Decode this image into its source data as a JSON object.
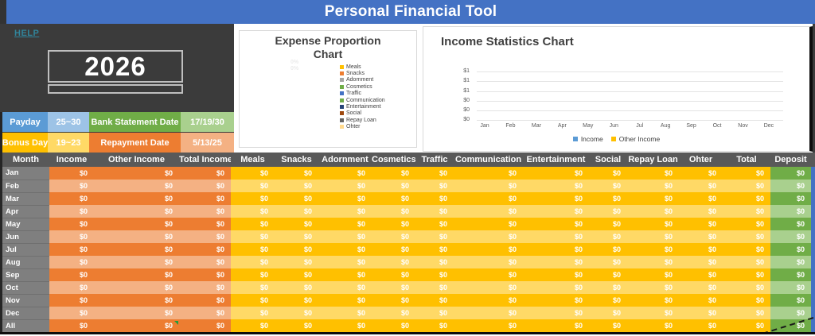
{
  "app": {
    "title": "Personal Financial Tool"
  },
  "left_panel": {
    "help": "HELP",
    "year": "2026",
    "info": [
      {
        "label": "Payday",
        "value": "25~30"
      },
      {
        "label": "Bank Statement Date",
        "value": "17/19/30"
      },
      {
        "label": "Bonus Day",
        "value": "19~23"
      },
      {
        "label": "Repayment Date",
        "value": "5/13/25"
      }
    ]
  },
  "expense_chart": {
    "title_line1": "Expense Proportion",
    "title_line2": "Chart",
    "zero_labels": [
      "0%",
      "0%"
    ],
    "legend": [
      {
        "name": "Meals",
        "color": "#FFC000"
      },
      {
        "name": "Snacks",
        "color": "#ED7D31"
      },
      {
        "name": "Adornment",
        "color": "#A5A5A5"
      },
      {
        "name": "Cosmetics",
        "color": "#70AD47"
      },
      {
        "name": "Traffic",
        "color": "#4472C4"
      },
      {
        "name": "Communication",
        "color": "#70AD47"
      },
      {
        "name": "Entertainment",
        "color": "#264478"
      },
      {
        "name": "Social",
        "color": "#9E480E"
      },
      {
        "name": "Repay Loan",
        "color": "#636363"
      },
      {
        "name": "Ohter",
        "color": "#FFD98C"
      }
    ]
  },
  "income_chart": {
    "title": "Income Statistics Chart",
    "y_ticks": [
      "$1",
      "$1",
      "$1",
      "$0",
      "$0",
      "$0"
    ],
    "x_ticks": [
      "Jan",
      "Feb",
      "Mar",
      "Apr",
      "May",
      "Jun",
      "Jul",
      "Aug",
      "Sep",
      "Oct",
      "Nov",
      "Dec"
    ],
    "legend": [
      {
        "name": "Income",
        "color": "#5B9BD5"
      },
      {
        "name": "Other Income",
        "color": "#FFC000"
      }
    ]
  },
  "table": {
    "headers": [
      "Month",
      "Income",
      "Other Income",
      "Total Income",
      "Meals",
      "Snacks",
      "Adornment",
      "Cosmetics",
      "Traffic",
      "Communication",
      "Entertainment",
      "Social",
      "Repay Loan",
      "Ohter",
      "Total",
      "Deposit"
    ],
    "rows": [
      {
        "month": "Jan",
        "values": [
          "$0",
          "$0",
          "$0",
          "$0",
          "$0",
          "$0",
          "$0",
          "$0",
          "$0",
          "$0",
          "$0",
          "$0",
          "$0",
          "$0",
          "$0"
        ]
      },
      {
        "month": "Feb",
        "values": [
          "$0",
          "$0",
          "$0",
          "$0",
          "$0",
          "$0",
          "$0",
          "$0",
          "$0",
          "$0",
          "$0",
          "$0",
          "$0",
          "$0",
          "$0"
        ]
      },
      {
        "month": "Mar",
        "values": [
          "$0",
          "$0",
          "$0",
          "$0",
          "$0",
          "$0",
          "$0",
          "$0",
          "$0",
          "$0",
          "$0",
          "$0",
          "$0",
          "$0",
          "$0"
        ]
      },
      {
        "month": "Apr",
        "values": [
          "$0",
          "$0",
          "$0",
          "$0",
          "$0",
          "$0",
          "$0",
          "$0",
          "$0",
          "$0",
          "$0",
          "$0",
          "$0",
          "$0",
          "$0"
        ]
      },
      {
        "month": "May",
        "values": [
          "$0",
          "$0",
          "$0",
          "$0",
          "$0",
          "$0",
          "$0",
          "$0",
          "$0",
          "$0",
          "$0",
          "$0",
          "$0",
          "$0",
          "$0"
        ]
      },
      {
        "month": "Jun",
        "values": [
          "$0",
          "$0",
          "$0",
          "$0",
          "$0",
          "$0",
          "$0",
          "$0",
          "$0",
          "$0",
          "$0",
          "$0",
          "$0",
          "$0",
          "$0"
        ]
      },
      {
        "month": "Jul",
        "values": [
          "$0",
          "$0",
          "$0",
          "$0",
          "$0",
          "$0",
          "$0",
          "$0",
          "$0",
          "$0",
          "$0",
          "$0",
          "$0",
          "$0",
          "$0"
        ]
      },
      {
        "month": "Aug",
        "values": [
          "$0",
          "$0",
          "$0",
          "$0",
          "$0",
          "$0",
          "$0",
          "$0",
          "$0",
          "$0",
          "$0",
          "$0",
          "$0",
          "$0",
          "$0"
        ]
      },
      {
        "month": "Sep",
        "values": [
          "$0",
          "$0",
          "$0",
          "$0",
          "$0",
          "$0",
          "$0",
          "$0",
          "$0",
          "$0",
          "$0",
          "$0",
          "$0",
          "$0",
          "$0"
        ]
      },
      {
        "month": "Oct",
        "values": [
          "$0",
          "$0",
          "$0",
          "$0",
          "$0",
          "$0",
          "$0",
          "$0",
          "$0",
          "$0",
          "$0",
          "$0",
          "$0",
          "$0",
          "$0"
        ]
      },
      {
        "month": "Nov",
        "values": [
          "$0",
          "$0",
          "$0",
          "$0",
          "$0",
          "$0",
          "$0",
          "$0",
          "$0",
          "$0",
          "$0",
          "$0",
          "$0",
          "$0",
          "$0"
        ]
      },
      {
        "month": "Dec",
        "values": [
          "$0",
          "$0",
          "$0",
          "$0",
          "$0",
          "$0",
          "$0",
          "$0",
          "$0",
          "$0",
          "$0",
          "$0",
          "$0",
          "$0",
          "$0"
        ]
      },
      {
        "month": "All",
        "values": [
          "$0",
          "$0",
          "$0",
          "$0",
          "$0",
          "$0",
          "$0",
          "$0",
          "$0",
          "$0",
          "$0",
          "$0",
          "$0",
          "$0",
          "$0"
        ]
      }
    ]
  },
  "chart_data": [
    {
      "type": "pie",
      "title": "Expense Proportion Chart",
      "categories": [
        "Meals",
        "Snacks",
        "Adornment",
        "Cosmetics",
        "Traffic",
        "Communication",
        "Entertainment",
        "Social",
        "Repay Loan",
        "Ohter"
      ],
      "values": [
        0,
        0,
        0,
        0,
        0,
        0,
        0,
        0,
        0,
        0
      ],
      "data_labels": "0%",
      "legend_position": "right"
    },
    {
      "type": "bar",
      "title": "Income Statistics Chart",
      "categories": [
        "Jan",
        "Feb",
        "Mar",
        "Apr",
        "May",
        "Jun",
        "Jul",
        "Aug",
        "Sep",
        "Oct",
        "Nov",
        "Dec"
      ],
      "series": [
        {
          "name": "Income",
          "values": [
            0,
            0,
            0,
            0,
            0,
            0,
            0,
            0,
            0,
            0,
            0,
            0
          ]
        },
        {
          "name": "Other Income",
          "values": [
            0,
            0,
            0,
            0,
            0,
            0,
            0,
            0,
            0,
            0,
            0,
            0
          ]
        }
      ],
      "xlabel": "",
      "ylabel": "",
      "ylim": [
        0,
        1
      ],
      "y_tick_labels_top_to_bottom": [
        "$1",
        "$1",
        "$1",
        "$0",
        "$0",
        "$0"
      ],
      "grid": true,
      "legend_position": "bottom"
    }
  ]
}
